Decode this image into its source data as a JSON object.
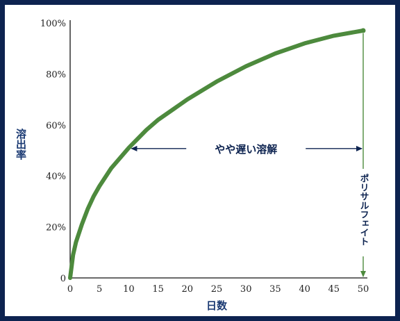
{
  "chart_data": {
    "type": "line",
    "xlabel": "日数",
    "ylabel": "溶出率",
    "xlim": [
      0,
      50
    ],
    "ylim": [
      0,
      100
    ],
    "x_ticks": [
      0,
      5,
      10,
      15,
      20,
      25,
      30,
      35,
      40,
      45,
      50
    ],
    "y_ticks": [
      "0",
      "20%",
      "40%",
      "60%",
      "80%",
      "100%"
    ],
    "series": [
      {
        "color": "#4d8a3d",
        "x": [
          0,
          0.5,
          1,
          2,
          3,
          4,
          5,
          7,
          10,
          13,
          15,
          20,
          25,
          30,
          35,
          40,
          45,
          50
        ],
        "y": [
          0,
          9,
          14,
          21,
          27,
          32,
          36,
          43,
          51,
          58,
          62,
          70,
          77,
          83,
          88,
          92,
          95,
          97
        ]
      }
    ],
    "annotations": [
      {
        "text": "やや遅い溶解",
        "x_from": 10,
        "x_to": 50,
        "y": 51
      },
      {
        "text": "ポリサルフェイト",
        "x": 50
      }
    ],
    "grid": false,
    "legend": "none"
  },
  "colors": {
    "frame": "#0d2350",
    "curve": "#4d8a3d",
    "axis_title": "#1b3a73"
  }
}
